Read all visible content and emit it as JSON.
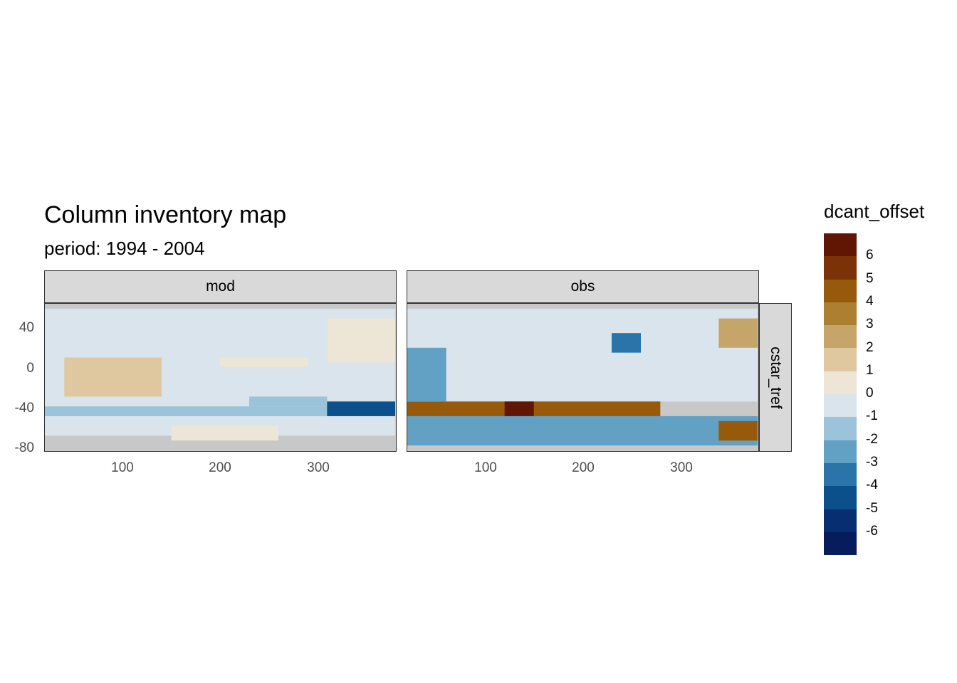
{
  "title": "Column inventory map",
  "subtitle": "period: 1994 - 2004",
  "facets": {
    "columns": [
      "mod",
      "obs"
    ],
    "row": "cstar_tref"
  },
  "colors": {
    "land": "#c8c8c8",
    "scale": [
      "#5f1603",
      "#7b3206",
      "#975a0a",
      "#ad7f30",
      "#c6a56a",
      "#dfc8a0",
      "#ede5d6",
      "#d9e4ec",
      "#9bc3d9",
      "#62a0c4",
      "#2a74a9",
      "#0b508a",
      "#082e72",
      "#061c5c"
    ]
  },
  "chart_data": {
    "type": "heatmap",
    "xlabel": "",
    "ylabel": "",
    "xlim": [
      20,
      380
    ],
    "ylim": [
      -85,
      65
    ],
    "x_ticks": [
      "100",
      "200",
      "300"
    ],
    "x_tick_values": [
      100,
      200,
      300
    ],
    "y_ticks": [
      "40",
      "0",
      "-40",
      "-80"
    ],
    "y_tick_values": [
      40,
      0,
      -40,
      -80
    ],
    "legend": {
      "title": "dcant_offset",
      "position": "right",
      "labels": [
        "6",
        "5",
        "4",
        "3",
        "2",
        "1",
        "0",
        "-1",
        "-2",
        "-3",
        "-4",
        "-5",
        "-6"
      ]
    },
    "panels": [
      {
        "name": "mod",
        "regions": [
          {
            "x": [
              20,
              380
            ],
            "y": [
              -70,
              60
            ],
            "value": -0.5
          },
          {
            "x": [
              40,
              140
            ],
            "y": [
              -30,
              10
            ],
            "value": 1.5
          },
          {
            "x": [
              230,
              310
            ],
            "y": [
              -40,
              -30
            ],
            "value": -1.5
          },
          {
            "x": [
              200,
              290
            ],
            "y": [
              0,
              10
            ],
            "value": 0.5
          },
          {
            "x": [
              310,
              380
            ],
            "y": [
              5,
              50
            ],
            "value": 0.5
          },
          {
            "x": [
              20,
              380
            ],
            "y": [
              -50,
              -40
            ],
            "value": -1.5
          },
          {
            "x": [
              310,
              380
            ],
            "y": [
              -50,
              -35
            ],
            "value": -4.0
          },
          {
            "x": [
              150,
              260
            ],
            "y": [
              -75,
              -60
            ],
            "value": 0.5
          }
        ]
      },
      {
        "name": "obs",
        "regions": [
          {
            "x": [
              20,
              380
            ],
            "y": [
              -35,
              60
            ],
            "value": -0.5
          },
          {
            "x": [
              20,
              280
            ],
            "y": [
              -50,
              -35
            ],
            "value": 5.0
          },
          {
            "x": [
              120,
              150
            ],
            "y": [
              -50,
              -35
            ],
            "value": 6.5
          },
          {
            "x": [
              20,
              380
            ],
            "y": [
              -80,
              -50
            ],
            "value": -2.0
          },
          {
            "x": [
              230,
              260
            ],
            "y": [
              15,
              35
            ],
            "value": -3.0
          },
          {
            "x": [
              20,
              60
            ],
            "y": [
              -35,
              20
            ],
            "value": -2.0
          },
          {
            "x": [
              340,
              380
            ],
            "y": [
              -75,
              -55
            ],
            "value": 5.0
          },
          {
            "x": [
              340,
              380
            ],
            "y": [
              20,
              50
            ],
            "value": 2.5
          }
        ]
      }
    ]
  }
}
